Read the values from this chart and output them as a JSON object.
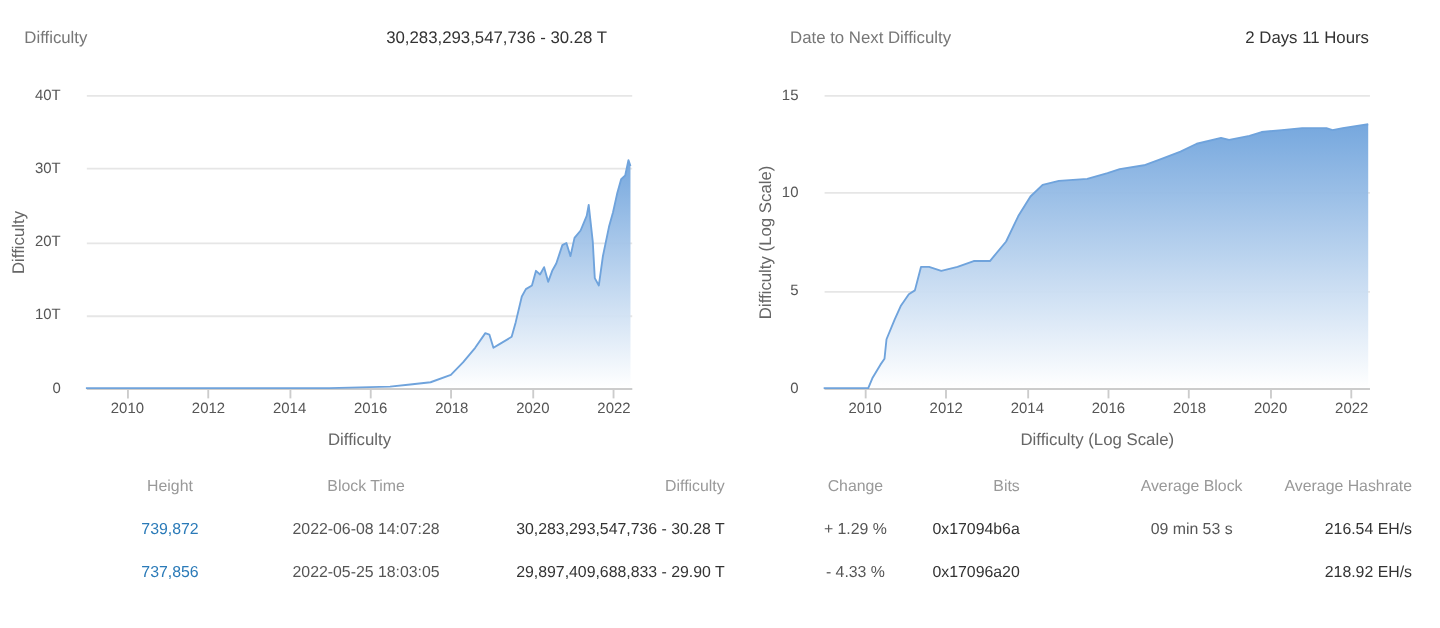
{
  "chart_data": [
    {
      "type": "area",
      "title": "Difficulty",
      "subtitle": "30,283,293,547,736 - 30.28 T",
      "xlabel": "Difficulty",
      "ylabel": "Difficulty",
      "xlim": [
        2009.0,
        2022.45
      ],
      "xticks": [
        2010,
        2012,
        2014,
        2016,
        2018,
        2020,
        2022
      ],
      "ylim": [
        0,
        40
      ],
      "yticks": [
        0,
        {
          "value": 10,
          "label": "10T"
        },
        {
          "value": 20,
          "label": "20T"
        },
        {
          "value": 30,
          "label": "30T"
        },
        {
          "value": 40,
          "label": "40T"
        }
      ],
      "grid": "y",
      "series": [
        {
          "color": "#6fa3dc",
          "x": [
            2009.0,
            2012.0,
            2015.0,
            2016.5,
            2017.0,
            2017.5,
            2018.0,
            2018.3,
            2018.6,
            2018.85,
            2018.95,
            2019.05,
            2019.2,
            2019.5,
            2019.6,
            2019.75,
            2019.85,
            2020.0,
            2020.1,
            2020.2,
            2020.3,
            2020.4,
            2020.5,
            2020.6,
            2020.75,
            2020.85,
            2020.95,
            2021.05,
            2021.2,
            2021.35,
            2021.4,
            2021.5,
            2021.55,
            2021.65,
            2021.75,
            2021.9,
            2022.0,
            2022.1,
            2022.2,
            2022.3,
            2022.38,
            2022.43
          ],
          "values": [
            0,
            0,
            0,
            0.2,
            0.5,
            0.8,
            1.8,
            3.5,
            5.5,
            7.5,
            7.3,
            5.5,
            6,
            7,
            9,
            12.5,
            13.5,
            14,
            16,
            15.5,
            16.5,
            14.5,
            16,
            17,
            19.5,
            19.8,
            18,
            20.5,
            21.5,
            23.5,
            25,
            20,
            15,
            14,
            18,
            22,
            24,
            26.5,
            28.5,
            29,
            31.1,
            30.3
          ]
        }
      ]
    },
    {
      "type": "area",
      "title": "Date to Next Difficulty",
      "subtitle": "2 Days 11 Hours",
      "xlabel": "Difficulty (Log Scale)",
      "ylabel": "Difficulty (Log Scale)",
      "xlim": [
        2009.0,
        2022.45
      ],
      "xticks": [
        2010,
        2012,
        2014,
        2016,
        2018,
        2020,
        2022
      ],
      "ylim": [
        0,
        15
      ],
      "yticks": [
        0,
        5,
        10,
        15
      ],
      "grid": "y",
      "series": [
        {
          "color": "#6fa3dc",
          "x": [
            2009.0,
            2010.1,
            2010.2,
            2010.4,
            2010.5,
            2010.55,
            2010.75,
            2010.9,
            2011.1,
            2011.25,
            2011.4,
            2011.6,
            2011.9,
            2012.3,
            2012.7,
            2013.1,
            2013.5,
            2013.8,
            2014.1,
            2014.4,
            2014.8,
            2015.5,
            2016.0,
            2016.3,
            2016.9,
            2017.3,
            2017.8,
            2018.2,
            2018.8,
            2019.0,
            2019.5,
            2019.8,
            2020.3,
            2020.8,
            2021.4,
            2021.55,
            2021.8,
            2022.43
          ],
          "values": [
            0,
            0,
            0.5,
            1.2,
            1.5,
            2.5,
            3.5,
            4.2,
            4.8,
            5.0,
            6.2,
            6.2,
            6.0,
            6.2,
            6.5,
            6.5,
            7.5,
            8.8,
            9.8,
            10.4,
            10.6,
            10.7,
            11.0,
            11.2,
            11.4,
            11.7,
            12.1,
            12.5,
            12.8,
            12.7,
            12.9,
            13.1,
            13.2,
            13.3,
            13.3,
            13.2,
            13.3,
            13.5
          ]
        }
      ]
    },
    {
      "type": "other",
      "categories": [
        "Height",
        "Block Time",
        "Difficulty",
        "Change",
        "Bits",
        "Average Block",
        "Average Hashrate"
      ],
      "cell_labels": [
        [
          "739,872",
          "2022-06-08 14:07:28",
          "30,283,293,547,736 - 30.28 T",
          "+ 1.29 %",
          "0x17094b6a",
          "09 min 53 s",
          "216.54 EH/s"
        ],
        [
          "737,856",
          "2022-05-25 18:03:05",
          "29,897,409,688,833 - 29.90 T",
          "- 4.33 %",
          "0x17096a20",
          null,
          "218.92 EH/s"
        ]
      ]
    }
  ]
}
